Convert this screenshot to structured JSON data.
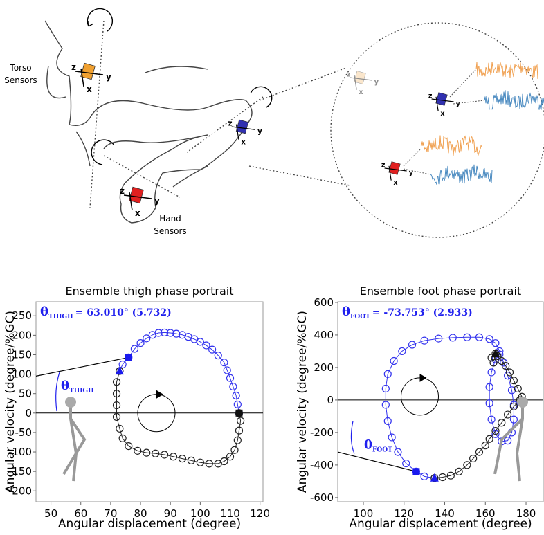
{
  "diagram": {
    "torso_label": [
      "Torso",
      "Sensors"
    ],
    "hand_label": [
      "Hand",
      "Sensors"
    ],
    "axis_labels": [
      "z",
      "y",
      "x"
    ]
  },
  "chart_data": [
    {
      "type": "scatter",
      "title": "Ensemble thigh phase portrait",
      "xlabel": "Angular displacement (degree)",
      "ylabel": "Angular velocity (degree/%GC)",
      "xlim": [
        45,
        121
      ],
      "xticks": [
        50,
        60,
        70,
        80,
        90,
        100,
        110,
        120
      ],
      "ylim": [
        -228,
        286
      ],
      "yticks": [
        -200,
        -150,
        -100,
        -50,
        0,
        50,
        100,
        150,
        200,
        250
      ],
      "annotation": {
        "symbol": "θ",
        "subscript": "THIGH",
        "text": "= 63.010° (5.732)"
      },
      "reference_line": {
        "x": [
          45,
          76
        ],
        "y": [
          95,
          143
        ]
      },
      "series": [
        {
          "color": "#3333ee",
          "x": [
            73,
            74,
            76,
            78,
            80,
            82,
            84,
            86,
            88,
            90,
            92,
            94,
            96,
            98,
            100,
            102,
            104,
            106,
            108,
            109,
            110,
            111,
            112,
            112.5,
            113
          ],
          "y": [
            108,
            125,
            143,
            165,
            180,
            192,
            201,
            206,
            207,
            206,
            204,
            201,
            196,
            190,
            183,
            174,
            163,
            148,
            130,
            110,
            90,
            68,
            45,
            22,
            0
          ]
        },
        {
          "color": "#222222",
          "x": [
            73,
            72,
            72,
            72,
            72,
            73,
            74,
            76,
            79,
            82,
            85,
            88,
            91,
            94,
            97,
            100,
            103,
            106,
            108,
            110,
            111.5,
            112.5,
            113,
            113.5,
            113
          ],
          "y": [
            108,
            80,
            50,
            20,
            -10,
            -40,
            -65,
            -85,
            -97,
            -102,
            -104,
            -107,
            -112,
            -117,
            -122,
            -127,
            -130,
            -130,
            -124,
            -112,
            -95,
            -70,
            -45,
            -20,
            0
          ]
        }
      ],
      "markers": [
        {
          "x": 76,
          "y": 143,
          "shape": "square",
          "color": "#1a1aee"
        },
        {
          "x": 73,
          "y": 108,
          "shape": "triangle",
          "color": "#1a1aee"
        },
        {
          "x": 113,
          "y": 0,
          "shape": "square",
          "color": "#111111"
        }
      ]
    },
    {
      "type": "scatter",
      "title": "Ensemble foot phase portrait",
      "xlabel": "Angular displacement (degree)",
      "ylabel": "Angular velocity (degree/%GC)",
      "xlim": [
        87.4,
        188.5
      ],
      "xticks": [
        100,
        120,
        140,
        160,
        180
      ],
      "ylim": [
        -626,
        604
      ],
      "yticks": [
        -600,
        -400,
        -200,
        0,
        200,
        400,
        600
      ],
      "annotation": {
        "symbol": "θ",
        "subscript": "FOOT",
        "text": "= -73.753° (2.933)"
      },
      "reference_line": {
        "x": [
          87.4,
          126
        ],
        "y": [
          -320,
          -440
        ]
      },
      "series": [
        {
          "color": "#3333ee",
          "x": [
            135,
            130,
            126,
            121,
            117,
            114,
            112,
            111,
            111,
            112,
            115,
            119,
            124,
            130,
            137,
            144,
            151,
            157,
            162,
            165,
            167,
            169,
            171,
            173,
            174,
            174,
            173,
            171,
            168,
            165,
            163,
            162,
            162,
            163,
            165,
            167
          ],
          "y": [
            -480,
            -470,
            -440,
            -390,
            -320,
            -230,
            -130,
            -30,
            70,
            160,
            240,
            300,
            340,
            365,
            378,
            383,
            386,
            386,
            375,
            350,
            300,
            230,
            150,
            60,
            -30,
            -120,
            -200,
            -250,
            -255,
            -210,
            -120,
            -20,
            80,
            170,
            250,
            280
          ]
        },
        {
          "color": "#222222",
          "x": [
            135,
            139,
            143,
            147,
            151,
            154,
            157,
            160,
            162,
            165,
            168,
            171,
            174,
            177,
            178,
            176,
            174,
            172,
            170,
            168,
            166,
            165,
            163,
            164
          ],
          "y": [
            -480,
            -475,
            -465,
            -440,
            -400,
            -360,
            -320,
            -280,
            -240,
            -190,
            -140,
            -90,
            -40,
            0,
            20,
            70,
            120,
            170,
            210,
            240,
            270,
            285,
            260,
            230
          ]
        }
      ],
      "markers": [
        {
          "x": 126,
          "y": -440,
          "shape": "square",
          "color": "#1a1aee"
        },
        {
          "x": 135,
          "y": -480,
          "shape": "triangle",
          "color": "#1a1aee"
        },
        {
          "x": 165,
          "y": 285,
          "shape": "triangle",
          "color": "#111111"
        }
      ]
    }
  ]
}
